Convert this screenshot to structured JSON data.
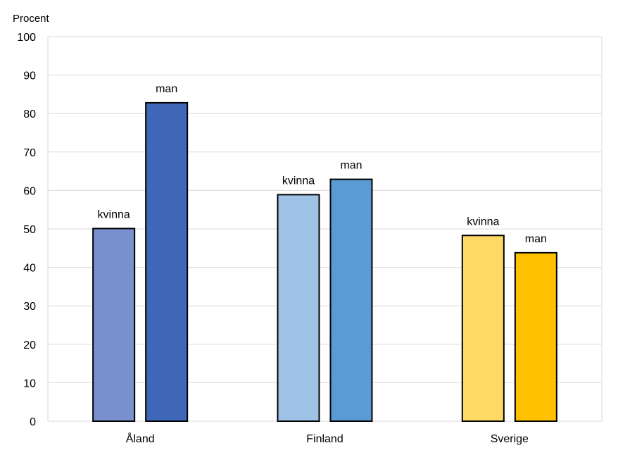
{
  "chart_data": {
    "type": "bar",
    "ylabel": "Procent",
    "ylim": [
      0,
      100
    ],
    "yticks": [
      0,
      10,
      20,
      30,
      40,
      50,
      60,
      70,
      80,
      90,
      100
    ],
    "grid": true,
    "categories": [
      "Åland",
      "Finland",
      "Sverige"
    ],
    "groups": [
      {
        "category": "Åland",
        "bars": [
          {
            "label": "kvinna",
            "value": 50.1,
            "color": "#7a91d0"
          },
          {
            "label": "man",
            "value": 82.8,
            "color": "#4068b8"
          }
        ]
      },
      {
        "category": "Finland",
        "bars": [
          {
            "label": "kvinna",
            "value": 58.9,
            "color": "#9fc3e6"
          },
          {
            "label": "man",
            "value": 62.9,
            "color": "#5b9bd5"
          }
        ]
      },
      {
        "category": "Sverige",
        "bars": [
          {
            "label": "kvinna",
            "value": 48.3,
            "color": "#ffd966"
          },
          {
            "label": "man",
            "value": 43.8,
            "color": "#ffc000"
          }
        ]
      }
    ]
  }
}
